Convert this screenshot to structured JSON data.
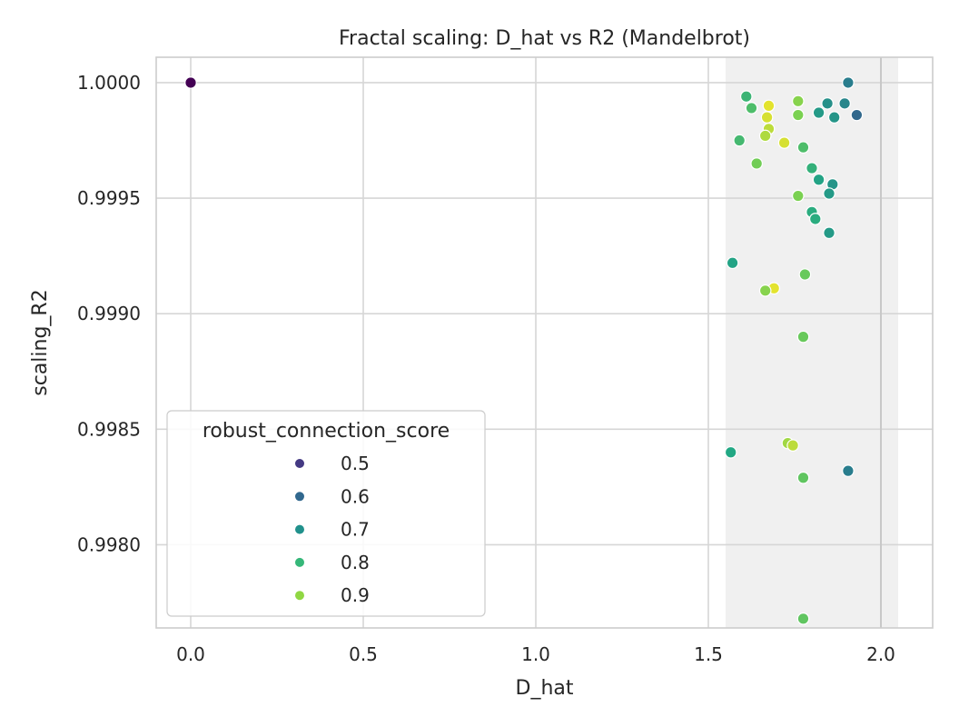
{
  "chart_data": {
    "type": "scatter",
    "title": "Fractal scaling: D_hat vs R2 (Mandelbrot)",
    "xlabel": "D_hat",
    "ylabel": "scaling_R2",
    "xlim": [
      -0.1,
      2.15
    ],
    "ylim": [
      0.99764,
      1.00011
    ],
    "x_ticks": [
      0.0,
      0.5,
      1.0,
      1.5,
      2.0
    ],
    "x_tick_labels": [
      "0.0",
      "0.5",
      "1.0",
      "1.5",
      "2.0"
    ],
    "y_ticks": [
      0.998,
      0.9985,
      0.999,
      0.9995,
      1.0
    ],
    "y_tick_labels": [
      "0.9980",
      "0.9985",
      "0.9990",
      "0.9995",
      "1.0000"
    ],
    "grid": true,
    "shaded_band": {
      "x_range": [
        1.55,
        2.05
      ],
      "color": "#f0f0f0"
    },
    "reference_line": {
      "x": 2.0,
      "color": "#c8c8c8"
    },
    "legend": {
      "title": "robust_connection_score",
      "placement": "lower-left",
      "entries": [
        {
          "label": "0.5",
          "color": "#443983"
        },
        {
          "label": "0.6",
          "color": "#31688e"
        },
        {
          "label": "0.7",
          "color": "#21918c"
        },
        {
          "label": "0.8",
          "color": "#35b779"
        },
        {
          "label": "0.9",
          "color": "#90d743"
        }
      ]
    },
    "color_scale": {
      "name": "viridis",
      "domain": [
        0.45,
        0.95
      ],
      "stops": [
        "#440154",
        "#414487",
        "#2a788e",
        "#22a884",
        "#7ad151",
        "#fde725"
      ]
    },
    "points": [
      {
        "x": 0.0,
        "y": 1.0,
        "score": 0.45
      },
      {
        "x": 1.905,
        "y": 1.0,
        "score": 0.66
      },
      {
        "x": 1.61,
        "y": 0.99994,
        "score": 0.78
      },
      {
        "x": 1.625,
        "y": 0.99989,
        "score": 0.8
      },
      {
        "x": 1.675,
        "y": 0.9999,
        "score": 0.93
      },
      {
        "x": 1.76,
        "y": 0.99992,
        "score": 0.86
      },
      {
        "x": 1.845,
        "y": 0.99991,
        "score": 0.7
      },
      {
        "x": 1.895,
        "y": 0.99991,
        "score": 0.68
      },
      {
        "x": 1.67,
        "y": 0.99985,
        "score": 0.92
      },
      {
        "x": 1.76,
        "y": 0.99986,
        "score": 0.85
      },
      {
        "x": 1.82,
        "y": 0.99987,
        "score": 0.72
      },
      {
        "x": 1.865,
        "y": 0.99985,
        "score": 0.71
      },
      {
        "x": 1.93,
        "y": 0.99986,
        "score": 0.62
      },
      {
        "x": 1.675,
        "y": 0.9998,
        "score": 0.9
      },
      {
        "x": 1.665,
        "y": 0.99977,
        "score": 0.89
      },
      {
        "x": 1.59,
        "y": 0.99975,
        "score": 0.79
      },
      {
        "x": 1.72,
        "y": 0.99974,
        "score": 0.92
      },
      {
        "x": 1.775,
        "y": 0.99972,
        "score": 0.8
      },
      {
        "x": 1.64,
        "y": 0.99965,
        "score": 0.84
      },
      {
        "x": 1.8,
        "y": 0.99963,
        "score": 0.77
      },
      {
        "x": 1.82,
        "y": 0.99958,
        "score": 0.74
      },
      {
        "x": 1.86,
        "y": 0.99956,
        "score": 0.71
      },
      {
        "x": 1.85,
        "y": 0.99952,
        "score": 0.72
      },
      {
        "x": 1.76,
        "y": 0.99951,
        "score": 0.85
      },
      {
        "x": 1.8,
        "y": 0.99944,
        "score": 0.76
      },
      {
        "x": 1.81,
        "y": 0.99941,
        "score": 0.76
      },
      {
        "x": 1.85,
        "y": 0.99935,
        "score": 0.72
      },
      {
        "x": 1.57,
        "y": 0.99922,
        "score": 0.74
      },
      {
        "x": 1.78,
        "y": 0.99917,
        "score": 0.83
      },
      {
        "x": 1.69,
        "y": 0.99911,
        "score": 0.93
      },
      {
        "x": 1.665,
        "y": 0.9991,
        "score": 0.86
      },
      {
        "x": 1.775,
        "y": 0.9989,
        "score": 0.83
      },
      {
        "x": 1.73,
        "y": 0.99844,
        "score": 0.88
      },
      {
        "x": 1.745,
        "y": 0.99843,
        "score": 0.9
      },
      {
        "x": 1.565,
        "y": 0.9984,
        "score": 0.75
      },
      {
        "x": 1.905,
        "y": 0.99832,
        "score": 0.66
      },
      {
        "x": 1.775,
        "y": 0.99829,
        "score": 0.82
      },
      {
        "x": 1.775,
        "y": 0.99768,
        "score": 0.82
      }
    ]
  }
}
